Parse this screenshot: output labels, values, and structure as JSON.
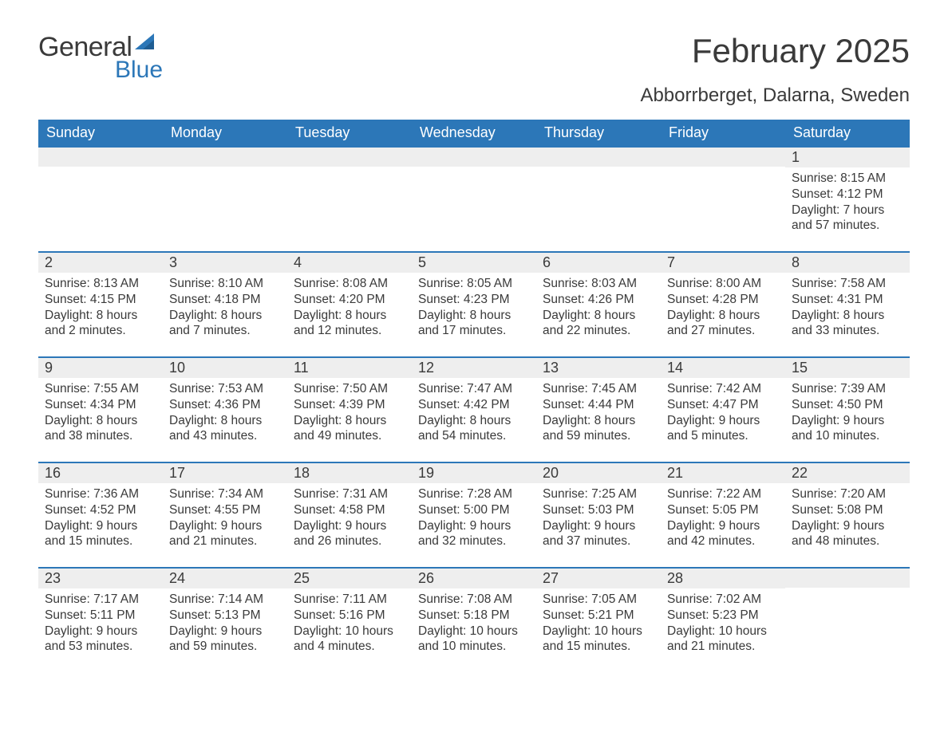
{
  "brand": {
    "word1": "General",
    "word2": "Blue",
    "logo_color": "#2c77b8"
  },
  "title": "February 2025",
  "location": "Abborrberget, Dalarna, Sweden",
  "colors": {
    "header_bg": "#2c77b8",
    "header_text": "#ffffff",
    "cell_border": "#2c77b8",
    "strip_bg": "#eeeeee",
    "body_text": "#3a3a3a",
    "page_bg": "#ffffff"
  },
  "weekday_labels": [
    "Sunday",
    "Monday",
    "Tuesday",
    "Wednesday",
    "Thursday",
    "Friday",
    "Saturday"
  ],
  "calendar": {
    "type": "table",
    "columns": 7,
    "rows": 5,
    "first_weekday_index_of_month": 6,
    "days_in_month": 28
  },
  "days": [
    {
      "n": 1,
      "sunrise": "8:15 AM",
      "sunset": "4:12 PM",
      "daylight": "7 hours and 57 minutes."
    },
    {
      "n": 2,
      "sunrise": "8:13 AM",
      "sunset": "4:15 PM",
      "daylight": "8 hours and 2 minutes."
    },
    {
      "n": 3,
      "sunrise": "8:10 AM",
      "sunset": "4:18 PM",
      "daylight": "8 hours and 7 minutes."
    },
    {
      "n": 4,
      "sunrise": "8:08 AM",
      "sunset": "4:20 PM",
      "daylight": "8 hours and 12 minutes."
    },
    {
      "n": 5,
      "sunrise": "8:05 AM",
      "sunset": "4:23 PM",
      "daylight": "8 hours and 17 minutes."
    },
    {
      "n": 6,
      "sunrise": "8:03 AM",
      "sunset": "4:26 PM",
      "daylight": "8 hours and 22 minutes."
    },
    {
      "n": 7,
      "sunrise": "8:00 AM",
      "sunset": "4:28 PM",
      "daylight": "8 hours and 27 minutes."
    },
    {
      "n": 8,
      "sunrise": "7:58 AM",
      "sunset": "4:31 PM",
      "daylight": "8 hours and 33 minutes."
    },
    {
      "n": 9,
      "sunrise": "7:55 AM",
      "sunset": "4:34 PM",
      "daylight": "8 hours and 38 minutes."
    },
    {
      "n": 10,
      "sunrise": "7:53 AM",
      "sunset": "4:36 PM",
      "daylight": "8 hours and 43 minutes."
    },
    {
      "n": 11,
      "sunrise": "7:50 AM",
      "sunset": "4:39 PM",
      "daylight": "8 hours and 49 minutes."
    },
    {
      "n": 12,
      "sunrise": "7:47 AM",
      "sunset": "4:42 PM",
      "daylight": "8 hours and 54 minutes."
    },
    {
      "n": 13,
      "sunrise": "7:45 AM",
      "sunset": "4:44 PM",
      "daylight": "8 hours and 59 minutes."
    },
    {
      "n": 14,
      "sunrise": "7:42 AM",
      "sunset": "4:47 PM",
      "daylight": "9 hours and 5 minutes."
    },
    {
      "n": 15,
      "sunrise": "7:39 AM",
      "sunset": "4:50 PM",
      "daylight": "9 hours and 10 minutes."
    },
    {
      "n": 16,
      "sunrise": "7:36 AM",
      "sunset": "4:52 PM",
      "daylight": "9 hours and 15 minutes."
    },
    {
      "n": 17,
      "sunrise": "7:34 AM",
      "sunset": "4:55 PM",
      "daylight": "9 hours and 21 minutes."
    },
    {
      "n": 18,
      "sunrise": "7:31 AM",
      "sunset": "4:58 PM",
      "daylight": "9 hours and 26 minutes."
    },
    {
      "n": 19,
      "sunrise": "7:28 AM",
      "sunset": "5:00 PM",
      "daylight": "9 hours and 32 minutes."
    },
    {
      "n": 20,
      "sunrise": "7:25 AM",
      "sunset": "5:03 PM",
      "daylight": "9 hours and 37 minutes."
    },
    {
      "n": 21,
      "sunrise": "7:22 AM",
      "sunset": "5:05 PM",
      "daylight": "9 hours and 42 minutes."
    },
    {
      "n": 22,
      "sunrise": "7:20 AM",
      "sunset": "5:08 PM",
      "daylight": "9 hours and 48 minutes."
    },
    {
      "n": 23,
      "sunrise": "7:17 AM",
      "sunset": "5:11 PM",
      "daylight": "9 hours and 53 minutes."
    },
    {
      "n": 24,
      "sunrise": "7:14 AM",
      "sunset": "5:13 PM",
      "daylight": "9 hours and 59 minutes."
    },
    {
      "n": 25,
      "sunrise": "7:11 AM",
      "sunset": "5:16 PM",
      "daylight": "10 hours and 4 minutes."
    },
    {
      "n": 26,
      "sunrise": "7:08 AM",
      "sunset": "5:18 PM",
      "daylight": "10 hours and 10 minutes."
    },
    {
      "n": 27,
      "sunrise": "7:05 AM",
      "sunset": "5:21 PM",
      "daylight": "10 hours and 15 minutes."
    },
    {
      "n": 28,
      "sunrise": "7:02 AM",
      "sunset": "5:23 PM",
      "daylight": "10 hours and 21 minutes."
    }
  ],
  "field_labels": {
    "sunrise": "Sunrise:",
    "sunset": "Sunset:",
    "daylight": "Daylight:"
  }
}
